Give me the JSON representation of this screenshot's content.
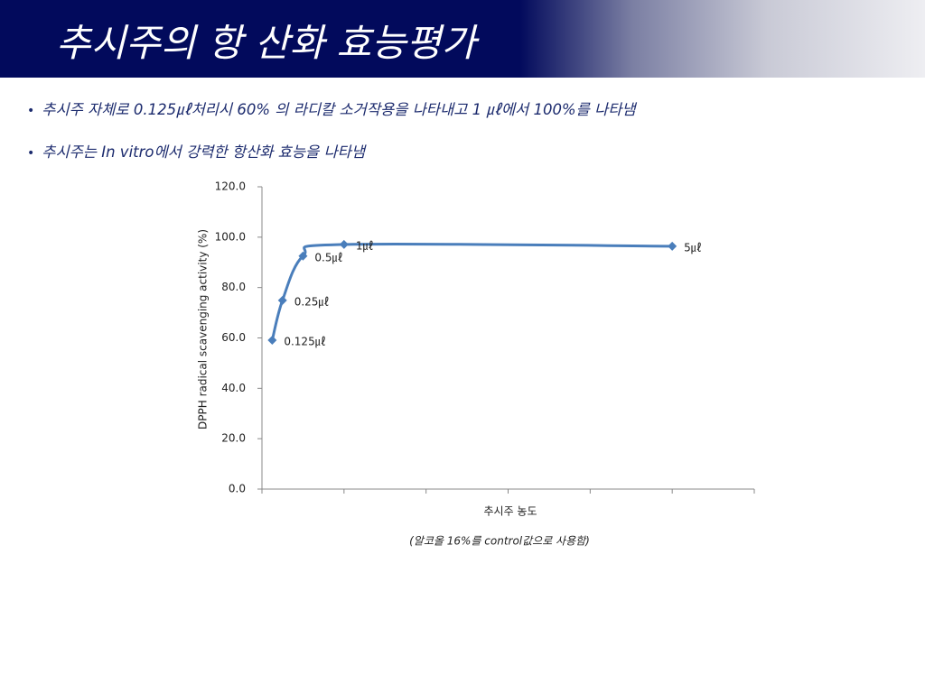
{
  "header": {
    "title": "추시주의 항 산화 효능평가"
  },
  "bullets": [
    "추시주 자체로 0.125㎕처리시 60% 의 라디칼 소거작용을 나타내고 1 ㎕에서 100%를 나타냄",
    "추시주는 In vitro에서 강력한 항산화 효능을 나타냄"
  ],
  "chart_data": {
    "type": "line",
    "x_label": "추시주 농도",
    "y_label": "DPPH radical scavenging activity (%)",
    "note": "(알코올 16%를 control값으로 사용함)",
    "x": [
      0.125,
      0.25,
      0.5,
      1,
      5
    ],
    "point_labels": [
      "0.125㎕",
      "0.25㎕",
      "0.5㎕",
      "1㎕",
      "5㎕"
    ],
    "series": [
      {
        "color": "#4a7ebb",
        "values": [
          59.1,
          74.9,
          92.5,
          97.1,
          96.4
        ]
      }
    ],
    "smooth": true,
    "xlim": [
      0,
      6
    ],
    "xticks": [
      0,
      1,
      2,
      3,
      4,
      5,
      6
    ],
    "ylim": [
      0,
      120
    ],
    "yticks": [
      {
        "value": 0,
        "label": "0.0"
      },
      {
        "value": 20,
        "label": "20.0"
      },
      {
        "value": 40,
        "label": "40.0"
      },
      {
        "value": 60,
        "label": "60.0"
      },
      {
        "value": 80,
        "label": "80.0"
      },
      {
        "value": 100,
        "label": "100.0"
      },
      {
        "value": 120,
        "label": "120.0"
      }
    ],
    "grid": false
  }
}
